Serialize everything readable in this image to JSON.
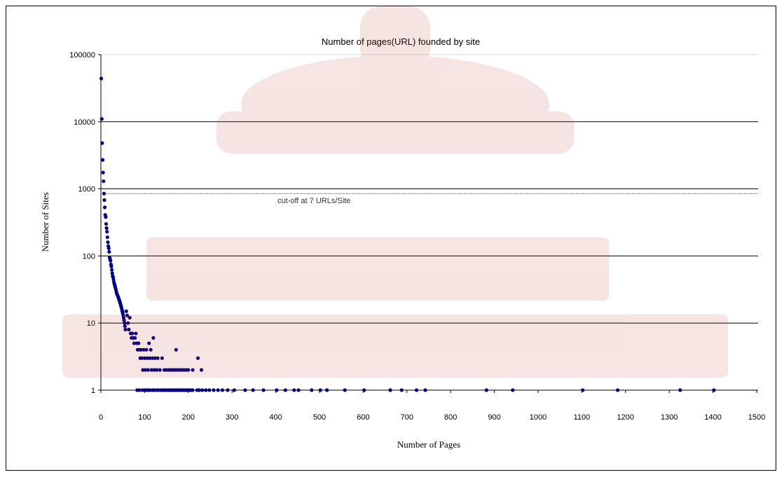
{
  "chart_data": {
    "type": "scatter",
    "title": "Number of pages(URL) founded by site",
    "xlabel": "Number of Pages",
    "ylabel": "Number of Sites",
    "x_scale": "linear",
    "y_scale": "log",
    "xlim": [
      0,
      1500
    ],
    "ylim": [
      1,
      100000
    ],
    "x_ticks": [
      "0",
      "100",
      "200",
      "300",
      "400",
      "500",
      "600",
      "700",
      "800",
      "900",
      "1000",
      "1100",
      "1200",
      "1300",
      "1400",
      "1500"
    ],
    "y_ticks": [
      "1",
      "10",
      "100",
      "1000",
      "10000",
      "100000"
    ],
    "grid": {
      "horizontal": true,
      "vertical": false
    },
    "legend": "none",
    "marker_color": "#000080",
    "annotation": {
      "text": "cut-off at 7 URLs/Site",
      "y": 850
    },
    "points": [
      [
        1,
        44000
      ],
      [
        2,
        11000
      ],
      [
        3,
        4800
      ],
      [
        4,
        2700
      ],
      [
        5,
        1750
      ],
      [
        6,
        1300
      ],
      [
        7,
        850
      ],
      [
        8,
        680
      ],
      [
        9,
        530
      ],
      [
        10,
        410
      ],
      [
        11,
        380
      ],
      [
        12,
        300
      ],
      [
        13,
        260
      ],
      [
        14,
        230
      ],
      [
        15,
        190
      ],
      [
        16,
        160
      ],
      [
        17,
        140
      ],
      [
        18,
        130
      ],
      [
        19,
        115
      ],
      [
        20,
        95
      ],
      [
        21,
        90
      ],
      [
        22,
        85
      ],
      [
        23,
        75
      ],
      [
        24,
        70
      ],
      [
        25,
        62
      ],
      [
        26,
        55
      ],
      [
        27,
        50
      ],
      [
        28,
        48
      ],
      [
        29,
        44
      ],
      [
        30,
        40
      ],
      [
        31,
        38
      ],
      [
        32,
        36
      ],
      [
        33,
        34
      ],
      [
        34,
        32
      ],
      [
        35,
        30
      ],
      [
        36,
        28
      ],
      [
        37,
        27
      ],
      [
        38,
        26
      ],
      [
        39,
        25
      ],
      [
        40,
        24
      ],
      [
        41,
        23
      ],
      [
        42,
        22
      ],
      [
        43,
        21
      ],
      [
        44,
        20
      ],
      [
        45,
        19
      ],
      [
        46,
        18
      ],
      [
        47,
        17
      ],
      [
        48,
        16
      ],
      [
        49,
        15
      ],
      [
        50,
        14
      ],
      [
        51,
        13
      ],
      [
        52,
        12
      ],
      [
        53,
        11
      ],
      [
        54,
        10
      ],
      [
        55,
        9
      ],
      [
        56,
        8
      ],
      [
        58,
        15
      ],
      [
        60,
        13
      ],
      [
        62,
        10
      ],
      [
        64,
        8
      ],
      [
        66,
        12
      ],
      [
        68,
        7
      ],
      [
        70,
        6
      ],
      [
        72,
        7
      ],
      [
        74,
        6
      ],
      [
        76,
        5
      ],
      [
        78,
        6
      ],
      [
        80,
        7
      ],
      [
        82,
        5
      ],
      [
        84,
        4
      ],
      [
        86,
        5
      ],
      [
        88,
        4
      ],
      [
        90,
        3
      ],
      [
        92,
        4
      ],
      [
        94,
        3
      ],
      [
        96,
        2
      ],
      [
        98,
        4
      ],
      [
        100,
        3
      ],
      [
        102,
        2
      ],
      [
        104,
        4
      ],
      [
        106,
        3
      ],
      [
        108,
        2
      ],
      [
        110,
        5
      ],
      [
        112,
        3
      ],
      [
        114,
        4
      ],
      [
        116,
        2
      ],
      [
        118,
        3
      ],
      [
        120,
        6
      ],
      [
        122,
        2
      ],
      [
        124,
        3
      ],
      [
        128,
        2
      ],
      [
        130,
        3
      ],
      [
        135,
        2
      ],
      [
        140,
        3
      ],
      [
        145,
        2
      ],
      [
        150,
        2
      ],
      [
        155,
        2
      ],
      [
        160,
        2
      ],
      [
        165,
        2
      ],
      [
        170,
        2
      ],
      [
        172,
        4
      ],
      [
        175,
        2
      ],
      [
        180,
        2
      ],
      [
        185,
        2
      ],
      [
        190,
        2
      ],
      [
        195,
        2
      ],
      [
        200,
        2
      ],
      [
        210,
        2
      ],
      [
        222,
        3
      ],
      [
        230,
        2
      ],
      [
        83,
        1
      ],
      [
        88,
        1
      ],
      [
        95,
        1
      ],
      [
        100,
        1
      ],
      [
        104,
        1
      ],
      [
        108,
        1
      ],
      [
        112,
        1
      ],
      [
        118,
        1
      ],
      [
        122,
        1
      ],
      [
        128,
        1
      ],
      [
        132,
        1
      ],
      [
        138,
        1
      ],
      [
        142,
        1
      ],
      [
        146,
        1
      ],
      [
        150,
        1
      ],
      [
        154,
        1
      ],
      [
        158,
        1
      ],
      [
        162,
        1
      ],
      [
        166,
        1
      ],
      [
        170,
        1
      ],
      [
        174,
        1
      ],
      [
        178,
        1
      ],
      [
        182,
        1
      ],
      [
        186,
        1
      ],
      [
        190,
        1
      ],
      [
        194,
        1
      ],
      [
        198,
        1
      ],
      [
        202,
        1
      ],
      [
        206,
        1
      ],
      [
        210,
        1
      ],
      [
        220,
        1
      ],
      [
        225,
        1
      ],
      [
        232,
        1
      ],
      [
        240,
        1
      ],
      [
        248,
        1
      ],
      [
        258,
        1
      ],
      [
        268,
        1
      ],
      [
        278,
        1
      ],
      [
        290,
        1
      ],
      [
        305,
        1
      ],
      [
        330,
        1
      ],
      [
        348,
        1
      ],
      [
        372,
        1
      ],
      [
        402,
        1
      ],
      [
        422,
        1
      ],
      [
        442,
        1
      ],
      [
        452,
        1
      ],
      [
        482,
        1
      ],
      [
        502,
        1
      ],
      [
        517,
        1
      ],
      [
        558,
        1
      ],
      [
        602,
        1
      ],
      [
        662,
        1
      ],
      [
        688,
        1
      ],
      [
        722,
        1
      ],
      [
        742,
        1
      ],
      [
        882,
        1
      ],
      [
        942,
        1
      ],
      [
        1102,
        1
      ],
      [
        1182,
        1
      ],
      [
        1325,
        1
      ],
      [
        1402,
        1
      ]
    ]
  }
}
